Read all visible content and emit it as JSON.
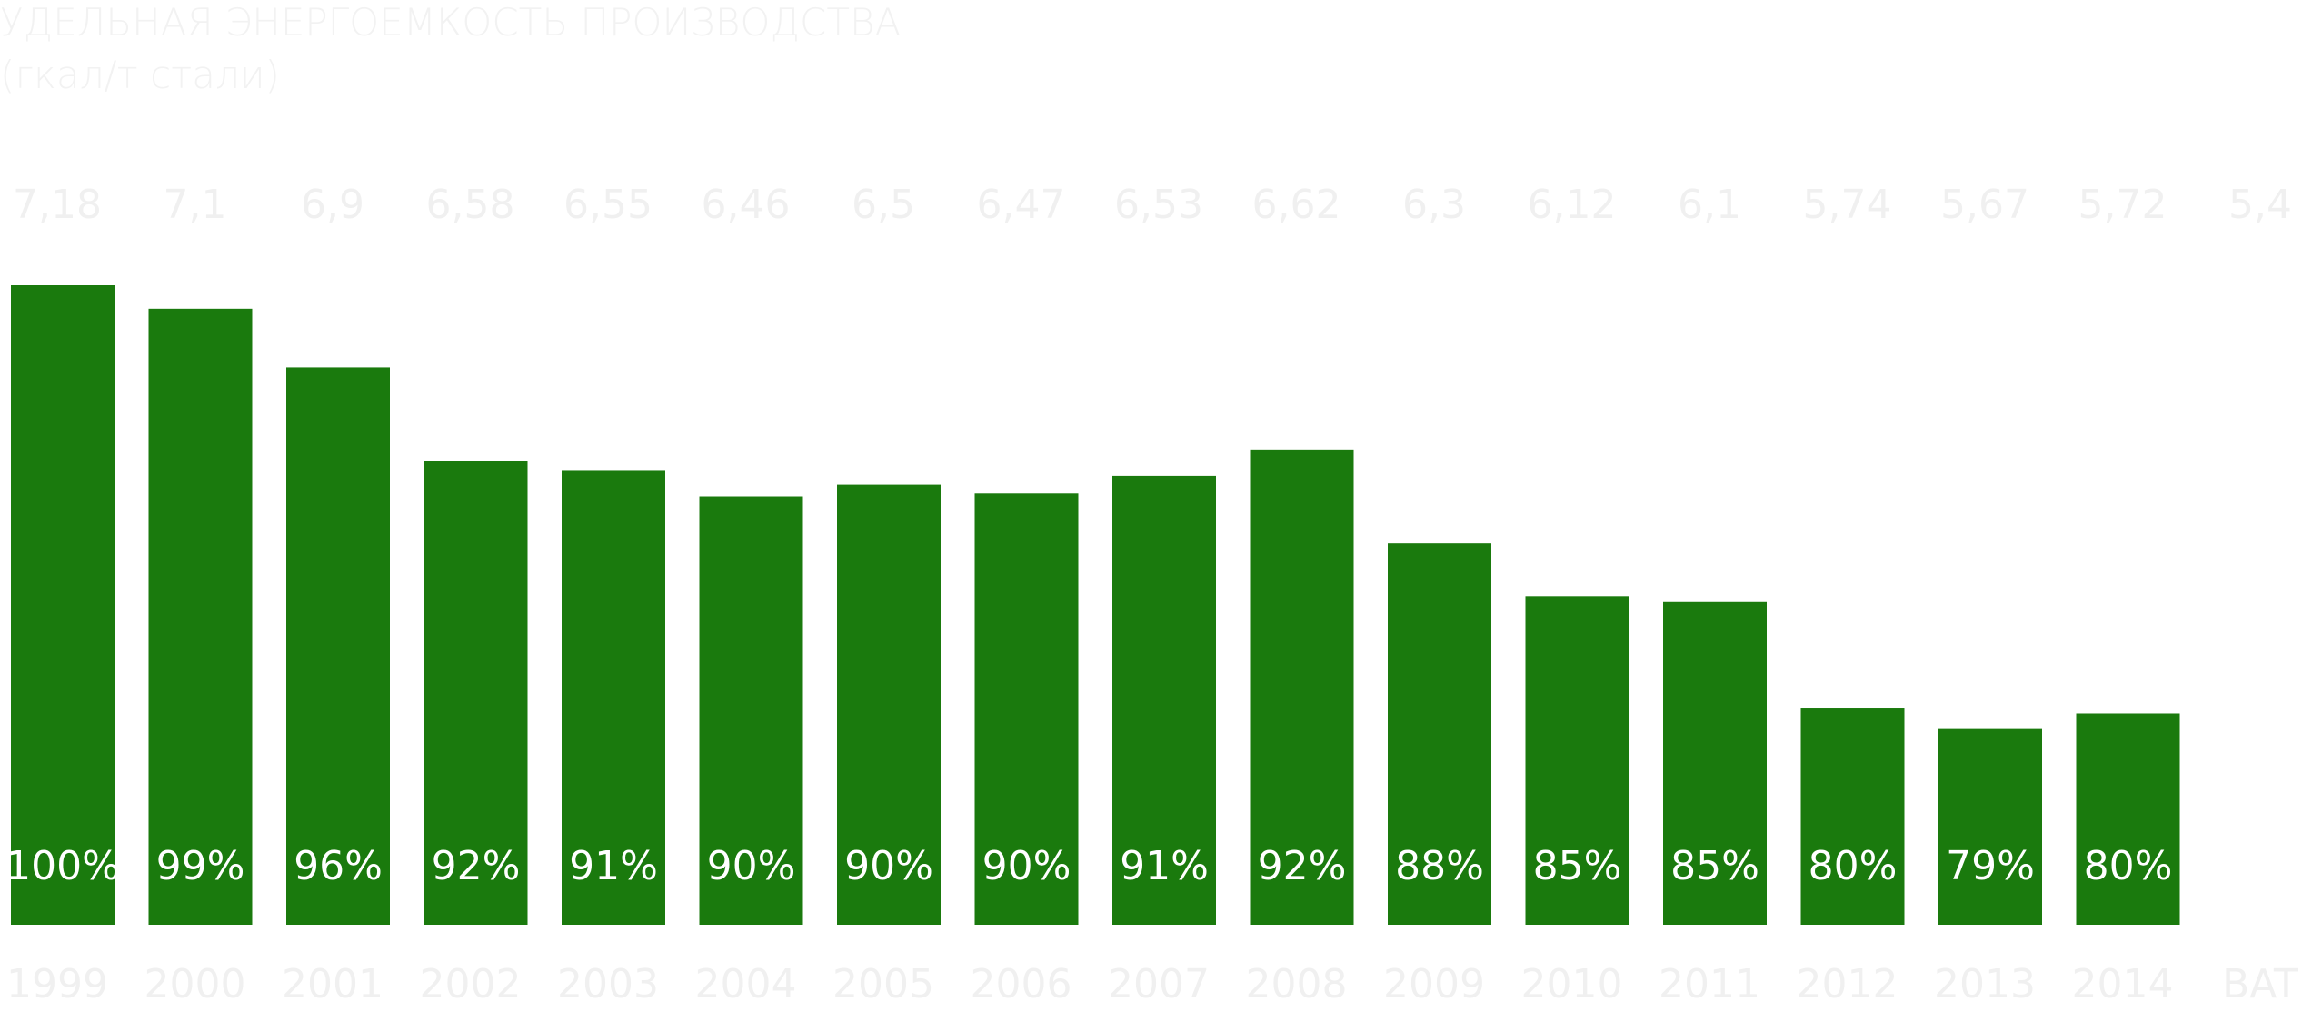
{
  "chart_data": {
    "type": "bar",
    "title": "УДЕЛЬНАЯ ЭНЕРГОЕМКОСТЬ ПРОИЗВОДСТВА",
    "subtitle": "(гкал/т стали)",
    "categories": [
      "1999",
      "2000",
      "2001",
      "2002",
      "2003",
      "2004",
      "2005",
      "2006",
      "2007",
      "2008",
      "2009",
      "2010",
      "2011",
      "2012",
      "2013",
      "2014",
      "BAT"
    ],
    "values": [
      7.18,
      7.1,
      6.9,
      6.58,
      6.55,
      6.46,
      6.5,
      6.47,
      6.53,
      6.62,
      6.3,
      6.12,
      6.1,
      5.74,
      5.67,
      5.72,
      5.4
    ],
    "value_labels": [
      "7,18",
      "7,1",
      "6,9",
      "6,58",
      "6,55",
      "6,46",
      "6,5",
      "6,47",
      "6,53",
      "6,62",
      "6,3",
      "6,12",
      "6,1",
      "5,74",
      "5,67",
      "5,72",
      "5,4"
    ],
    "percent_labels": [
      "100%",
      "99%",
      "96%",
      "92%",
      "91%",
      "90%",
      "90%",
      "90%",
      "91%",
      "92%",
      "88%",
      "85%",
      "85%",
      "80%",
      "79%",
      "80%",
      ""
    ],
    "bar_drawn": [
      true,
      true,
      true,
      true,
      true,
      true,
      true,
      true,
      true,
      true,
      true,
      true,
      true,
      true,
      true,
      true,
      false
    ],
    "ylim": [
      5.0,
      7.18
    ],
    "colors": {
      "bar": "#1a7a0d",
      "label": "#f0f0f0",
      "percent": "#ffffff"
    },
    "grid": false,
    "legend": "none"
  }
}
